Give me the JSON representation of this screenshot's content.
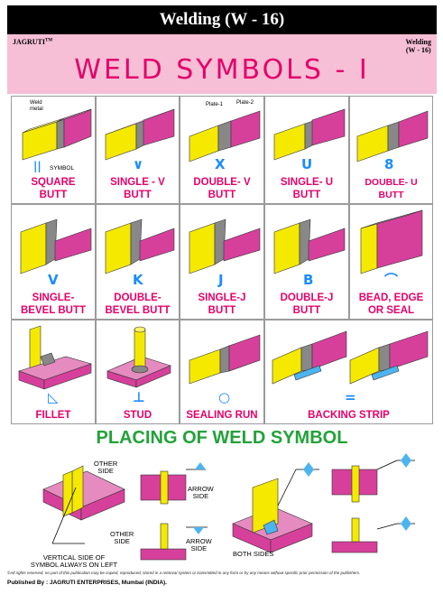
{
  "header": {
    "top_title": "Welding (W - 16)",
    "brand": "JAGRUTI",
    "brand_mark": "TM",
    "corner_line1": "Welding",
    "corner_line2": "(W - 16)",
    "main_title": "WELD SYMBOLS - I"
  },
  "grid": {
    "row1": [
      {
        "label1": "SQUARE",
        "label2": "BUTT",
        "symbol": "||",
        "extra": "SYMBOL",
        "note_a": "Weld",
        "note_b": "metal"
      },
      {
        "label1": "SINGLE - V",
        "label2": "BUTT",
        "symbol": "∨"
      },
      {
        "label1": "DOUBLE- V",
        "label2": "BUTT",
        "symbol": "X",
        "note_a": "Plate-1",
        "note_b": "Plate-2"
      },
      {
        "label1": "SINGLE- U",
        "label2": "BUTT",
        "symbol": "U"
      },
      {
        "label1": "DOUBLE- U",
        "label2": "BUTT",
        "symbol": "8"
      }
    ],
    "row2": [
      {
        "label1": "SINGLE-",
        "label2": "BEVEL BUTT",
        "symbol": "V"
      },
      {
        "label1": "DOUBLE-",
        "label2": "BEVEL BUTT",
        "symbol": "K"
      },
      {
        "label1": "SINGLE-J",
        "label2": "BUTT",
        "symbol": "J"
      },
      {
        "label1": "DOUBLE-J",
        "label2": "BUTT",
        "symbol": "B"
      },
      {
        "label1": "BEAD, EDGE",
        "label2": "OR SEAL",
        "symbol": "⌒"
      }
    ],
    "row3": [
      {
        "label1": "FILLET",
        "symbol": "◺"
      },
      {
        "label1": "STUD",
        "symbol": "⊥"
      },
      {
        "label1": "SEALING RUN",
        "symbol": "○"
      },
      {
        "label1": "BACKING STRIP",
        "symbol": "="
      }
    ]
  },
  "placing": {
    "title": "PLACING OF WELD SYMBOL",
    "other_side_1a": "OTHER",
    "other_side_1b": "SIDE",
    "arrow_side_1a": "ARROW",
    "arrow_side_1b": "SIDE",
    "other_side_2a": "OTHER",
    "other_side_2b": "SIDE",
    "arrow_side_2a": "ARROW",
    "arrow_side_2b": "SIDE",
    "both_sides": "BOTH SIDES",
    "vertical_note1": "VERTICAL SIDE OF",
    "vertical_note2": "SYMBOL ALWAYS ON LEFT"
  },
  "footer": {
    "rights": "©All rights reserved, no part of this publication may be copied, reproduced, stored in a retrieval system or transmitted in any form or by any means without specific prior permission of the publishers.",
    "published_by_label": "Published By :",
    "publisher": "JAGRUTI ENTERPRISES, Mumbai (INDIA)."
  },
  "colors": {
    "magenta": "#d6409b",
    "yellow": "#f5e900",
    "pink_title": "#e4006a",
    "blue_symbol": "#1a8cff",
    "green_title": "#23a23a",
    "banner_pink": "#f6bfd6"
  }
}
